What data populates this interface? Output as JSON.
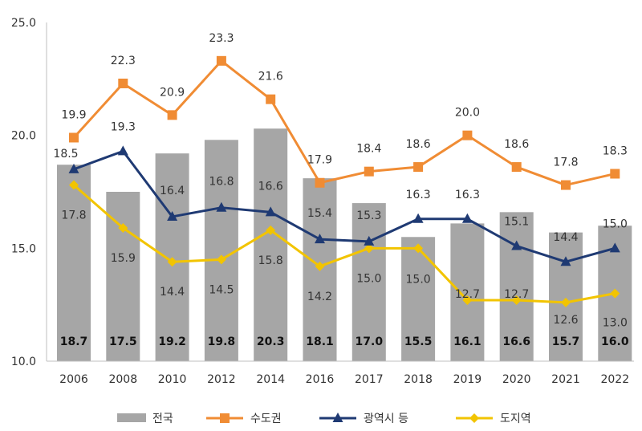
{
  "colors": {
    "bar": "#a6a6a6",
    "capital": "#f08c34",
    "metro": "#1f3a73",
    "province": "#f2c400",
    "axis": "#bfbfbf"
  },
  "chart_data": {
    "type": "bar+line",
    "categories": [
      "2006",
      "2008",
      "2010",
      "2012",
      "2014",
      "2016",
      "2017",
      "2018",
      "2019",
      "2020",
      "2021",
      "2022"
    ],
    "ylim": [
      10,
      25
    ],
    "yticks": [
      "10.0",
      "15.0",
      "20.0",
      "25.0"
    ],
    "grid": false,
    "legend_position": "bottom",
    "series": [
      {
        "name": "전국",
        "kind": "bar",
        "values": [
          18.7,
          17.5,
          19.2,
          19.8,
          20.3,
          18.1,
          17.0,
          15.5,
          16.1,
          16.6,
          15.7,
          16.0
        ],
        "labels": [
          "18.7",
          "17.5",
          "19.2",
          "19.8",
          "20.3",
          "18.1",
          "17.0",
          "15.5",
          "16.1",
          "16.6",
          "15.7",
          "16.0"
        ]
      },
      {
        "name": "수도권",
        "kind": "line",
        "marker": "square",
        "values": [
          19.9,
          22.3,
          20.9,
          23.3,
          21.6,
          17.9,
          18.4,
          18.6,
          20.0,
          18.6,
          17.8,
          18.3
        ],
        "labels": [
          "19.9",
          "22.3",
          "20.9",
          "23.3",
          "21.6",
          "17.9",
          "18.4",
          "18.6",
          "20.0",
          "18.6",
          "17.8",
          "18.3"
        ]
      },
      {
        "name": "광역시 등",
        "kind": "line",
        "marker": "triangle",
        "values": [
          18.5,
          19.3,
          16.4,
          16.8,
          16.6,
          15.4,
          15.3,
          16.3,
          16.3,
          15.1,
          14.4,
          15.0
        ],
        "labels": [
          "18.5",
          "19.3",
          "16.4",
          "16.8",
          "16.6",
          "15.4",
          "15.3",
          "16.3",
          "16.3",
          "15.1",
          "14.4",
          "15.0"
        ]
      },
      {
        "name": "도지역",
        "kind": "line",
        "marker": "diamond",
        "values": [
          17.8,
          15.9,
          14.4,
          14.5,
          15.8,
          14.2,
          15.0,
          15.0,
          12.7,
          12.7,
          12.6,
          13.0
        ],
        "labels": [
          "17.8",
          "15.9",
          "14.4",
          "14.5",
          "15.8",
          "14.2",
          "15.0",
          "15.0",
          "12.7",
          "12.7",
          "12.6",
          "13.0"
        ]
      }
    ]
  }
}
